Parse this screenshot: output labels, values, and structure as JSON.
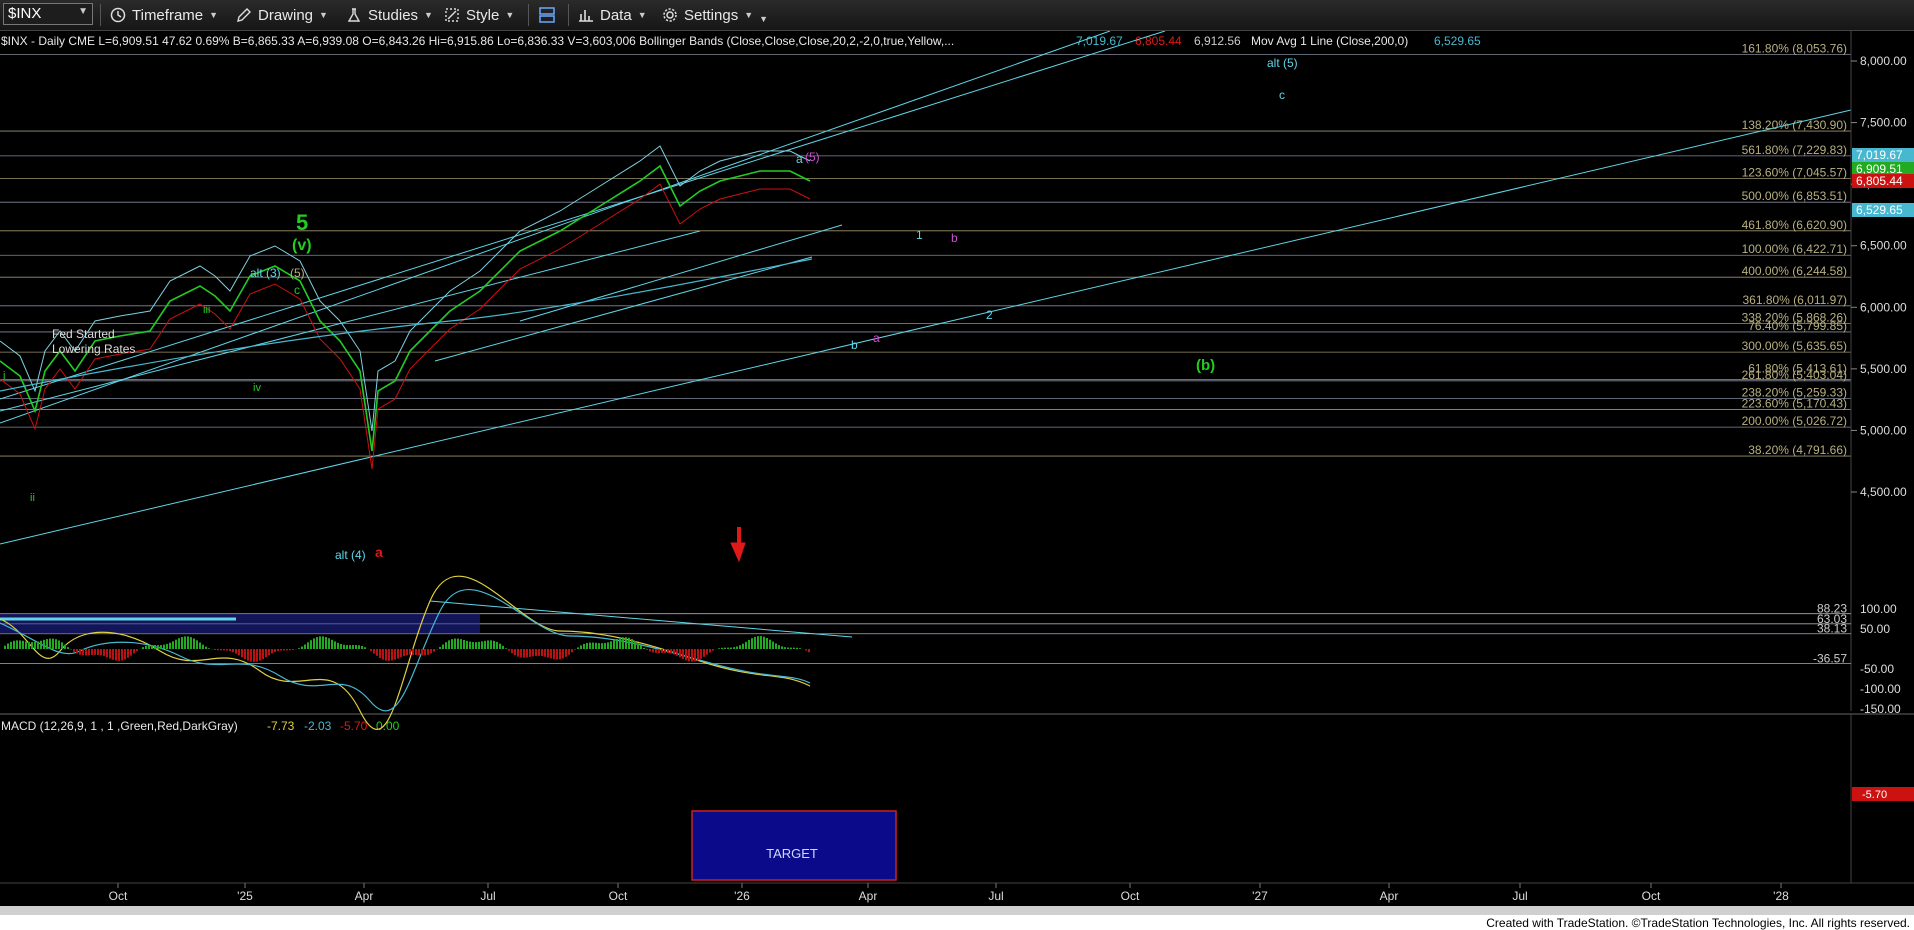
{
  "toolbar": {
    "symbol": "$INX",
    "timeframe": "Timeframe",
    "drawing": "Drawing",
    "studies": "Studies",
    "style": "Style",
    "data": "Data",
    "settings": "Settings"
  },
  "price_header": {
    "left": "$INX - Daily  CME  L=6,909.51  47.62  0.69%  B=6,865.33  A=6,939.08  O=6,843.26  Hi=6,915.86  Lo=6,836.33  V=3,603,006  Bollinger Bands (Close,Close,Close,20,2,-2,0,true,Yellow,...",
    "bb_upper": "7,019.67",
    "bb_lower": "6,805.44",
    "bb_mid": "6,912.56",
    "ma_label": "Mov Avg 1 Line (Close,200,0)",
    "ma_value": "6,529.65"
  },
  "macd_header": {
    "label": "MACD (12,26,9, 1 , 1 ,Green,Red,DarkGray)",
    "v1": "-7.73",
    "v2": "-2.03",
    "v3": "-5.70",
    "v4": "0.00"
  },
  "colors": {
    "green": "#22cc22",
    "red": "#e01818",
    "cyan": "#5fd6e8",
    "magenta": "#d050d0",
    "fib": "#b8b080",
    "price_white": "#ffffff"
  },
  "price_axis": [
    "8,000.00",
    "7,500.00",
    "7,000.00",
    "6,500.00",
    "6,000.00",
    "5,500.00",
    "5,000.00",
    "4,500.00"
  ],
  "price_tags": [
    {
      "text": "7,019.67",
      "color": "#48b8d0"
    },
    {
      "text": "6,909.51",
      "color": "#22aa22"
    },
    {
      "text": "6,805.44",
      "color": "#cc1111"
    },
    {
      "text": "6,529.65",
      "color": "#48b8d0"
    }
  ],
  "fib_levels": [
    {
      "label": "161.80% (8,053.76)",
      "price": 8053.76
    },
    {
      "label": "138.20% (7,430.90)",
      "price": 7430.9
    },
    {
      "label": "561.80% (7,229.83)",
      "price": 7229.83
    },
    {
      "label": "123.60% (7,045.57)",
      "price": 7045.57
    },
    {
      "label": "500.00% (6,853.51)",
      "price": 6853.51
    },
    {
      "label": "461.80% (6,620.90)",
      "price": 6620.9
    },
    {
      "label": "100.00% (6,422.71)",
      "price": 6422.71
    },
    {
      "label": "400.00% (6,244.58)",
      "price": 6244.58
    },
    {
      "label": "361.80% (6,011.97)",
      "price": 6011.97
    },
    {
      "label": "338.20% (5,868.26)",
      "price": 5868.26
    },
    {
      "label": "76.40% (5,799.85)",
      "price": 5799.85
    },
    {
      "label": "300.00% (5,635.65)",
      "price": 5635.65
    },
    {
      "label": "261.80% (5,403.04)",
      "price": 5403.04
    },
    {
      "label": "61.80% (5,413.61)",
      "price": 5413.61
    },
    {
      "label": "238.20% (5,259.33)",
      "price": 5259.33
    },
    {
      "label": "223.60% (5,170.43)",
      "price": 5170.43
    },
    {
      "label": "200.00% (5,026.72)",
      "price": 5026.72
    },
    {
      "label": "38.20% (4,791.66)",
      "price": 4791.66
    }
  ],
  "annotations": [
    {
      "text": "5",
      "color": "#22cc22"
    },
    {
      "text": "(v)",
      "color": "#22cc22"
    },
    {
      "text": "alt (3)",
      "color": "#5fd6e8"
    },
    {
      "text": "(5)",
      "color": "#b8b080"
    },
    {
      "text": "c",
      "color": "#22cc22"
    },
    {
      "text": "iii",
      "color": "#22cc22"
    },
    {
      "text": "iv",
      "color": "#22cc22"
    },
    {
      "text": "i",
      "color": "#22cc22"
    },
    {
      "text": "ii",
      "color": "#22cc22"
    },
    {
      "text": "Fed Started",
      "color": "#dddddd"
    },
    {
      "text": "Lowering Rates",
      "color": "#dddddd"
    },
    {
      "text": "alt (4)",
      "color": "#5fd6e8"
    },
    {
      "text": "a",
      "color": "#e01818"
    },
    {
      "text": "a",
      "color": "#5fd6e8"
    },
    {
      "text": "(5)",
      "color": "#d050d0"
    },
    {
      "text": "1",
      "color": "#5fd6e8"
    },
    {
      "text": "b",
      "color": "#d050d0"
    },
    {
      "text": "2",
      "color": "#5fd6e8"
    },
    {
      "text": "b",
      "color": "#5fd6e8"
    },
    {
      "text": "a",
      "color": "#d050d0"
    },
    {
      "text": "(b)",
      "color": "#22cc22"
    },
    {
      "text": "alt (5)",
      "color": "#5fd6e8"
    },
    {
      "text": "c",
      "color": "#5fd6e8"
    }
  ],
  "macd_axis": [
    "100.00",
    "50.00",
    "-50.00",
    "-100.00",
    "-150.00"
  ],
  "macd_levels": [
    {
      "label": "88.23",
      "value": 88.23
    },
    {
      "label": "63.03",
      "value": 63.03
    },
    {
      "label": "38.13",
      "value": 38.13
    },
    {
      "label": "-36.57",
      "value": -36.57
    }
  ],
  "macd_tag": "-5.70",
  "target_label": "TARGET",
  "time_axis": [
    "Oct",
    "'25",
    "Apr",
    "Jul",
    "Oct",
    "'26",
    "Apr",
    "Jul",
    "Oct",
    "'27",
    "Apr",
    "Jul",
    "Oct",
    "'28"
  ],
  "credit": "Created with TradeStation. ©TradeStation Technologies, Inc. All rights reserved."
}
